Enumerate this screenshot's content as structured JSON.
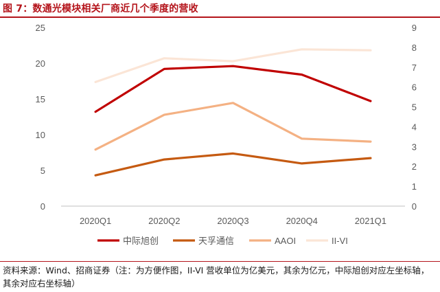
{
  "figure": {
    "title": "图 7：数通光模块相关厂商近几个季度的营收",
    "source": "资料来源：Wind、招商证券（注：为方便作图，II-VI 营收单位为亿美元，其余为亿元，中际旭创对应左坐标轴，其余对应右坐标轴）"
  },
  "chart_data": {
    "type": "line",
    "title": "数通光模块相关厂商近几个季度的营收",
    "categories": [
      "2020Q1",
      "2020Q2",
      "2020Q3",
      "2020Q4",
      "2021Q1"
    ],
    "y_left": {
      "min": 0,
      "max": 25,
      "ticks": [
        0,
        5,
        10,
        15,
        20,
        25
      ]
    },
    "y_right": {
      "min": 0,
      "max": 9,
      "ticks": [
        0,
        1,
        2,
        3,
        4,
        5,
        6,
        7,
        8,
        9
      ]
    },
    "grid": false,
    "legend_position": "bottom",
    "series": [
      {
        "name": "中际旭创",
        "axis": "left",
        "color": "#c00000",
        "values": [
          13.2,
          19.2,
          19.6,
          18.4,
          14.7
        ]
      },
      {
        "name": "天孚通信",
        "axis": "right",
        "color": "#c55a11",
        "values": [
          1.55,
          2.35,
          2.65,
          2.15,
          2.42
        ]
      },
      {
        "name": "AAOI",
        "axis": "right",
        "color": "#f4b183",
        "values": [
          2.85,
          4.6,
          5.2,
          3.4,
          3.25
        ]
      },
      {
        "name": "II-VI",
        "axis": "right",
        "color": "#fbe5d6",
        "values": [
          6.25,
          7.45,
          7.3,
          7.9,
          7.85
        ]
      }
    ]
  }
}
